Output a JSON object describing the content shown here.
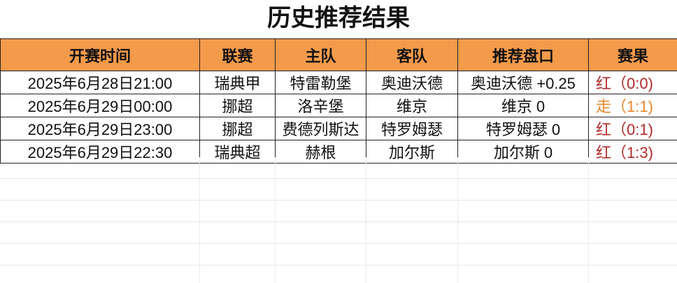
{
  "title": "历史推荐结果",
  "headers": [
    "开赛时间",
    "联赛",
    "主队",
    "客队",
    "推荐盘口",
    "赛果"
  ],
  "rows": [
    {
      "time": "2025年6月28日21:00",
      "league": "瑞典甲",
      "home": "特雷勒堡",
      "away": "奥迪沃德",
      "pick": "奥迪沃德 +0.25",
      "result": "红（0:0)",
      "status": "red"
    },
    {
      "time": "2025年6月29日00:00",
      "league": "挪超",
      "home": "洛辛堡",
      "away": "维京",
      "pick": "维京 0",
      "result": "走（1:1)",
      "status": "orange"
    },
    {
      "time": "2025年6月29日23:00",
      "league": "挪超",
      "home": "费德列斯达",
      "away": "特罗姆瑟",
      "pick": "特罗姆瑟 0",
      "result": "红（0:1)",
      "status": "red"
    },
    {
      "time": "2025年6月29日22:30",
      "league": "瑞典超",
      "home": "赫根",
      "away": "加尔斯",
      "pick": "加尔斯 0",
      "result": "红（1:3)",
      "status": "red"
    }
  ],
  "colors": {
    "header_bg": "#f39a4b",
    "win": "#b02a2a",
    "push": "#e8862a"
  }
}
